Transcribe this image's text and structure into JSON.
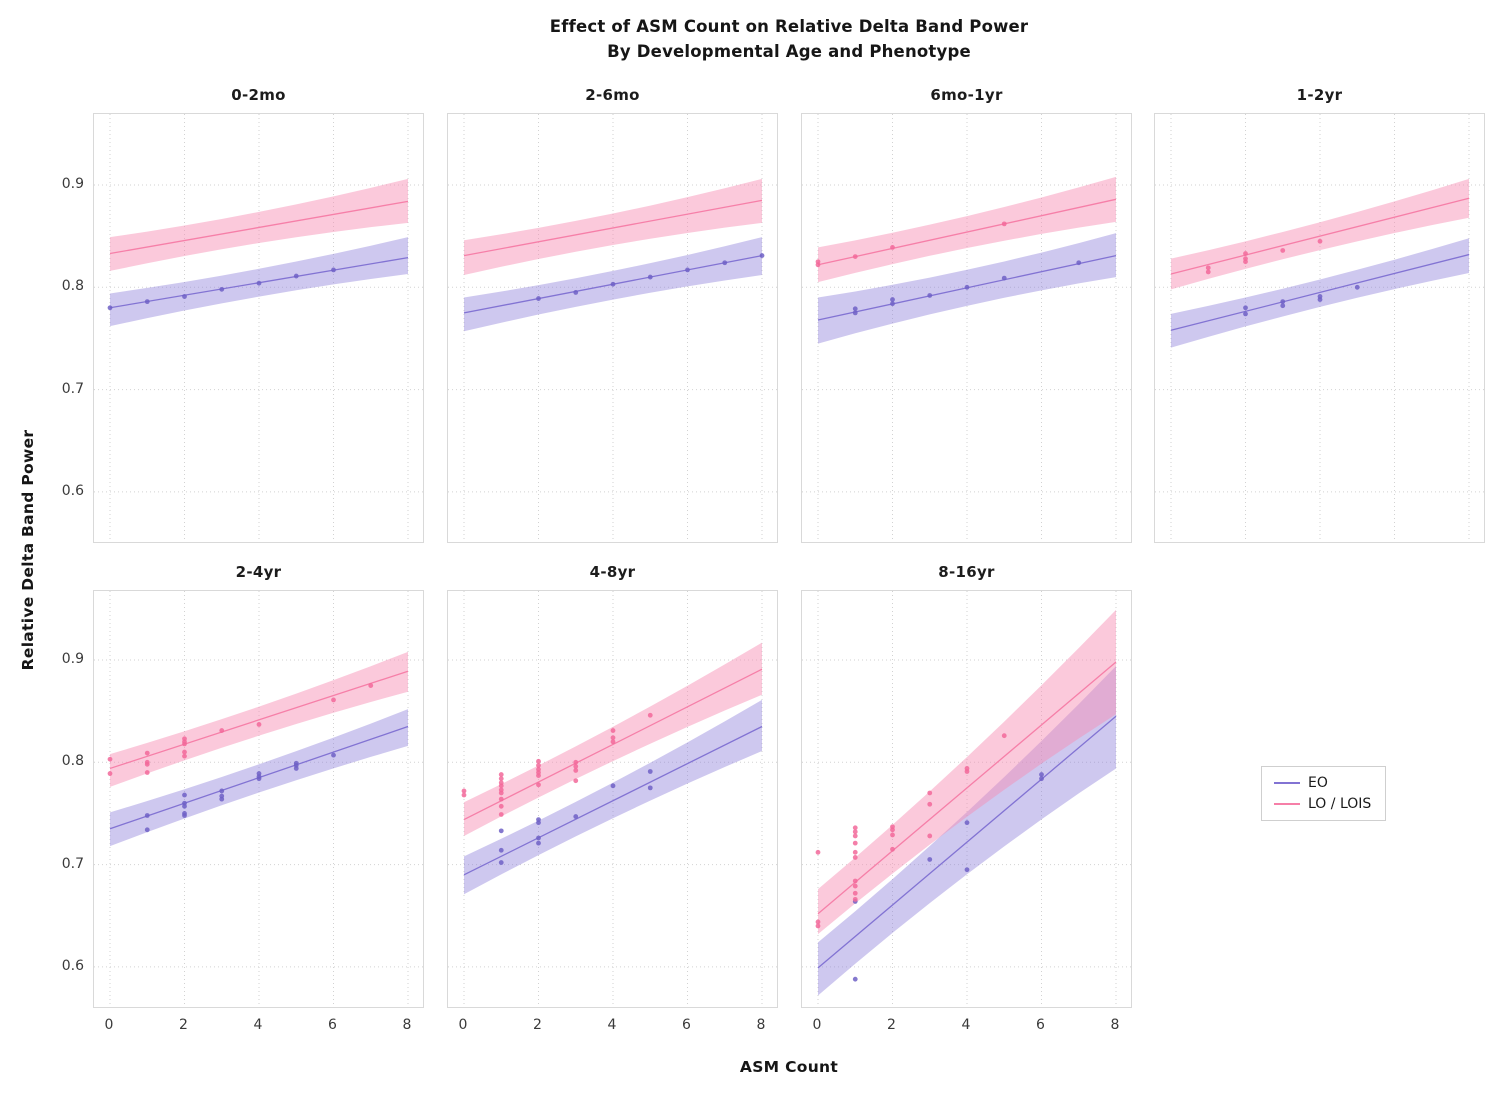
{
  "title": {
    "line1": "Effect of ASM Count on Relative Delta Band Power",
    "line2": "By Developmental Age and Phenotype"
  },
  "legend": {
    "items": [
      {
        "label": "EO"
      },
      {
        "label": "LO / LOIS"
      }
    ]
  },
  "colors": {
    "eo_line": "#8273d3",
    "eo_dot": "#6f60c6",
    "eo_fill": "#8b7dd8",
    "lo_line": "#f67fa8",
    "lo_dot": "#f2699a",
    "lo_fill": "#f78fb3",
    "grid": "#d2d2d2",
    "panel_border": "#d9d9d9",
    "text": "#161616",
    "tick_text": "#3a3a3a"
  },
  "chart_data": {
    "type": "scatter",
    "title": "Effect of ASM Count on Relative Delta Band Power — By Developmental Age and Phenotype",
    "x_label": "ASM Count",
    "y_label": "Relative Delta Band Power",
    "grid": "dotted",
    "legend_position": "center right",
    "xlim": [
      -0.43,
      8.46
    ],
    "ylim": [
      0.55,
      0.97
    ],
    "x_ticks": [
      {
        "v": 0,
        "label": "0"
      },
      {
        "v": 2,
        "label": "2"
      },
      {
        "v": 4,
        "label": "4"
      },
      {
        "v": 6,
        "label": "6"
      },
      {
        "v": 8,
        "label": "8"
      }
    ],
    "y_ticks": [
      {
        "v": 0.9,
        "label": "0.9"
      },
      {
        "v": 0.8,
        "label": "0.8"
      },
      {
        "v": 0.7,
        "label": "0.7"
      },
      {
        "v": 0.6,
        "label": "0.6"
      }
    ],
    "series_names": [
      "EO",
      "LO / LOIS"
    ],
    "facets": [
      {
        "title": "0-2mo",
        "row": 0,
        "col": 0,
        "eo": {
          "line_x": [
            0,
            8
          ],
          "line_y": [
            0.78,
            0.829
          ],
          "ci_top": [
            0.794,
            0.849
          ],
          "ci_bottom": [
            0.762,
            0.813
          ],
          "points": [
            [
              0,
              0.78
            ],
            [
              1,
              0.786
            ],
            [
              2,
              0.791
            ],
            [
              3,
              0.798
            ],
            [
              4,
              0.804
            ],
            [
              5,
              0.811
            ],
            [
              6,
              0.817
            ]
          ]
        },
        "lo": {
          "line_x": [
            0,
            8
          ],
          "line_y": [
            0.833,
            0.884
          ],
          "ci_top": [
            0.849,
            0.906
          ],
          "ci_bottom": [
            0.816,
            0.863
          ],
          "points": []
        }
      },
      {
        "title": "2-6mo",
        "row": 0,
        "col": 1,
        "eo": {
          "line_x": [
            0,
            8
          ],
          "line_y": [
            0.775,
            0.831
          ],
          "ci_top": [
            0.79,
            0.849
          ],
          "ci_bottom": [
            0.757,
            0.812
          ],
          "points": [
            [
              2,
              0.789
            ],
            [
              3,
              0.795
            ],
            [
              4,
              0.803
            ],
            [
              5,
              0.81
            ],
            [
              6,
              0.817
            ],
            [
              7,
              0.824
            ],
            [
              8,
              0.831
            ]
          ]
        },
        "lo": {
          "line_x": [
            0,
            8
          ],
          "line_y": [
            0.831,
            0.885
          ],
          "ci_top": [
            0.846,
            0.906
          ],
          "ci_bottom": [
            0.812,
            0.863
          ],
          "points": []
        }
      },
      {
        "title": "6mo-1yr",
        "row": 0,
        "col": 2,
        "eo": {
          "line_x": [
            0,
            8
          ],
          "line_y": [
            0.768,
            0.831
          ],
          "ci_top": [
            0.79,
            0.853
          ],
          "ci_bottom": [
            0.745,
            0.81
          ],
          "points": [
            [
              1,
              0.775
            ],
            [
              1,
              0.779
            ],
            [
              2,
              0.784
            ],
            [
              2,
              0.788
            ],
            [
              3,
              0.792
            ],
            [
              4,
              0.8
            ],
            [
              5,
              0.809
            ],
            [
              7,
              0.824
            ]
          ]
        },
        "lo": {
          "line_x": [
            0,
            8
          ],
          "line_y": [
            0.822,
            0.886
          ],
          "ci_top": [
            0.839,
            0.908
          ],
          "ci_bottom": [
            0.805,
            0.864
          ],
          "points": [
            [
              0,
              0.822
            ],
            [
              0,
              0.825
            ],
            [
              1,
              0.83
            ],
            [
              2,
              0.839
            ],
            [
              5,
              0.862
            ]
          ]
        }
      },
      {
        "title": "1-2yr",
        "row": 0,
        "col": 3,
        "eo": {
          "line_x": [
            0,
            8
          ],
          "line_y": [
            0.758,
            0.832
          ],
          "ci_top": [
            0.774,
            0.848
          ],
          "ci_bottom": [
            0.741,
            0.814
          ],
          "points": [
            [
              2,
              0.774
            ],
            [
              2,
              0.78
            ],
            [
              3,
              0.782
            ],
            [
              3,
              0.786
            ],
            [
              4,
              0.788
            ],
            [
              4,
              0.791
            ],
            [
              5,
              0.8
            ]
          ]
        },
        "lo": {
          "line_x": [
            0,
            8
          ],
          "line_y": [
            0.813,
            0.887
          ],
          "ci_top": [
            0.828,
            0.906
          ],
          "ci_bottom": [
            0.798,
            0.868
          ],
          "points": [
            [
              1,
              0.815
            ],
            [
              1,
              0.819
            ],
            [
              2,
              0.825
            ],
            [
              2,
              0.828
            ],
            [
              2,
              0.833
            ],
            [
              3,
              0.836
            ],
            [
              4,
              0.845
            ]
          ]
        }
      },
      {
        "title": "2-4yr",
        "row": 1,
        "col": 0,
        "eo": {
          "line_x": [
            0,
            8
          ],
          "line_y": [
            0.735,
            0.835
          ],
          "ci_top": [
            0.751,
            0.852
          ],
          "ci_bottom": [
            0.718,
            0.816
          ],
          "points": [
            [
              1,
              0.734
            ],
            [
              1,
              0.748
            ],
            [
              2,
              0.748
            ],
            [
              2,
              0.75
            ],
            [
              2,
              0.757
            ],
            [
              2,
              0.76
            ],
            [
              2,
              0.768
            ],
            [
              3,
              0.764
            ],
            [
              3,
              0.767
            ],
            [
              3,
              0.772
            ],
            [
              4,
              0.784
            ],
            [
              4,
              0.786
            ],
            [
              4,
              0.789
            ],
            [
              5,
              0.794
            ],
            [
              5,
              0.797
            ],
            [
              5,
              0.799
            ],
            [
              6,
              0.807
            ]
          ]
        },
        "lo": {
          "line_x": [
            0,
            8
          ],
          "line_y": [
            0.794,
            0.889
          ],
          "ci_top": [
            0.808,
            0.908
          ],
          "ci_bottom": [
            0.776,
            0.869
          ],
          "points": [
            [
              0,
              0.789
            ],
            [
              0,
              0.803
            ],
            [
              1,
              0.79
            ],
            [
              1,
              0.798
            ],
            [
              1,
              0.8
            ],
            [
              1,
              0.809
            ],
            [
              2,
              0.806
            ],
            [
              2,
              0.81
            ],
            [
              2,
              0.818
            ],
            [
              2,
              0.82
            ],
            [
              2,
              0.823
            ],
            [
              3,
              0.831
            ],
            [
              4,
              0.837
            ],
            [
              6,
              0.861
            ],
            [
              7,
              0.875
            ]
          ]
        }
      },
      {
        "title": "4-8yr",
        "row": 1,
        "col": 1,
        "eo": {
          "line_x": [
            0,
            8
          ],
          "line_y": [
            0.69,
            0.835
          ],
          "ci_top": [
            0.708,
            0.861
          ],
          "ci_bottom": [
            0.671,
            0.811
          ],
          "points": [
            [
              1,
              0.702
            ],
            [
              1,
              0.714
            ],
            [
              1,
              0.733
            ],
            [
              2,
              0.721
            ],
            [
              2,
              0.726
            ],
            [
              2,
              0.741
            ],
            [
              2,
              0.744
            ],
            [
              3,
              0.747
            ],
            [
              4,
              0.777
            ],
            [
              5,
              0.775
            ],
            [
              5,
              0.791
            ]
          ]
        },
        "lo": {
          "line_x": [
            0,
            8
          ],
          "line_y": [
            0.744,
            0.891
          ],
          "ci_top": [
            0.761,
            0.917
          ],
          "ci_bottom": [
            0.728,
            0.866
          ],
          "points": [
            [
              0,
              0.768
            ],
            [
              0,
              0.772
            ],
            [
              1,
              0.749
            ],
            [
              1,
              0.757
            ],
            [
              1,
              0.764
            ],
            [
              1,
              0.77
            ],
            [
              1,
              0.773
            ],
            [
              1,
              0.777
            ],
            [
              1,
              0.78
            ],
            [
              1,
              0.784
            ],
            [
              1,
              0.788
            ],
            [
              2,
              0.778
            ],
            [
              2,
              0.787
            ],
            [
              2,
              0.79
            ],
            [
              2,
              0.793
            ],
            [
              2,
              0.797
            ],
            [
              2,
              0.801
            ],
            [
              3,
              0.782
            ],
            [
              3,
              0.792
            ],
            [
              3,
              0.796
            ],
            [
              3,
              0.8
            ],
            [
              4,
              0.82
            ],
            [
              4,
              0.824
            ],
            [
              4,
              0.831
            ],
            [
              5,
              0.846
            ]
          ]
        }
      },
      {
        "title": "8-16yr",
        "row": 1,
        "col": 2,
        "eo": {
          "line_x": [
            0,
            8
          ],
          "line_y": [
            0.599,
            0.845
          ],
          "ci_top": [
            0.624,
            0.894
          ],
          "ci_bottom": [
            0.572,
            0.794
          ],
          "points": [
            [
              1,
              0.588
            ],
            [
              1,
              0.664
            ],
            [
              3,
              0.705
            ],
            [
              4,
              0.695
            ],
            [
              4,
              0.741
            ],
            [
              6,
              0.784
            ],
            [
              6,
              0.788
            ]
          ]
        },
        "lo": {
          "line_x": [
            0,
            8
          ],
          "line_y": [
            0.652,
            0.898
          ],
          "ci_top": [
            0.676,
            0.949
          ],
          "ci_bottom": [
            0.632,
            0.847
          ],
          "points": [
            [
              0,
              0.64
            ],
            [
              0,
              0.644
            ],
            [
              0,
              0.712
            ],
            [
              1,
              0.666
            ],
            [
              1,
              0.672
            ],
            [
              1,
              0.679
            ],
            [
              1,
              0.684
            ],
            [
              1,
              0.707
            ],
            [
              1,
              0.712
            ],
            [
              1,
              0.721
            ],
            [
              1,
              0.728
            ],
            [
              1,
              0.732
            ],
            [
              1,
              0.736
            ],
            [
              2,
              0.715
            ],
            [
              2,
              0.729
            ],
            [
              2,
              0.734
            ],
            [
              2,
              0.737
            ],
            [
              3,
              0.728
            ],
            [
              3,
              0.759
            ],
            [
              3,
              0.77
            ],
            [
              4,
              0.791
            ],
            [
              4,
              0.794
            ],
            [
              5,
              0.826
            ]
          ]
        }
      }
    ]
  }
}
